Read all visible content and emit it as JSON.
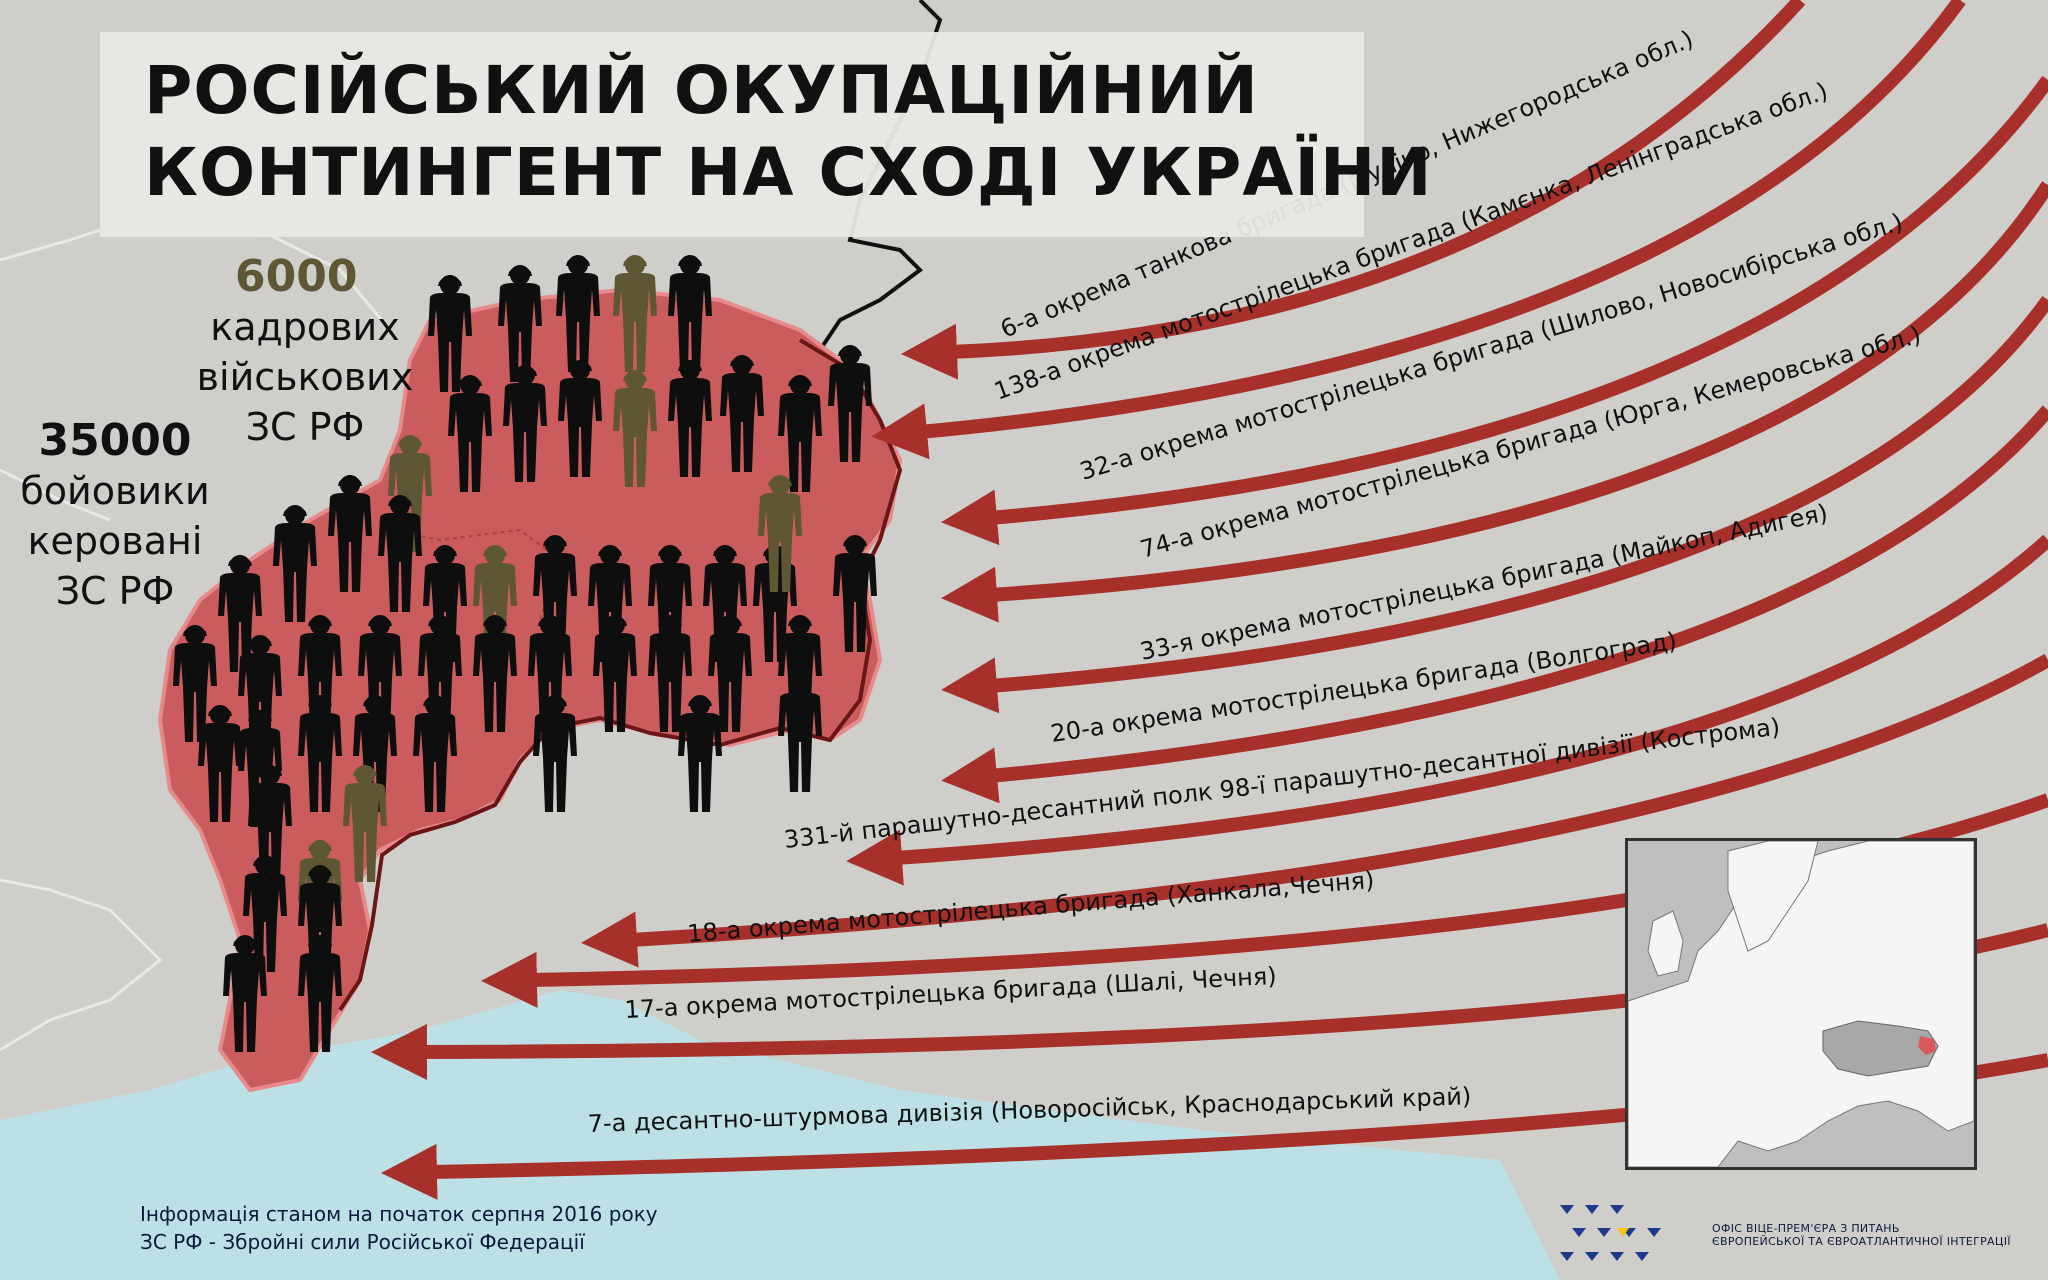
{
  "title": {
    "line1": "РОСІЙСЬКИЙ ОКУПАЦІЙНИЙ",
    "line2": "КОНТИНГЕНТ НА СХОДІ УКРАЇНИ"
  },
  "stats": {
    "regular": {
      "number": "6000",
      "line1": "кадрових",
      "line2": "військових",
      "line3": "ЗС РФ"
    },
    "militants": {
      "number": "35000",
      "line1": "бойовики",
      "line2": "керовані",
      "line3": "ЗС РФ"
    }
  },
  "units": [
    "6-а окрема танкова бригада (Муліно, Нижегородська обл.)",
    "138-а окрема мотострілецька бригада (Камєнка, Ленінградська обл.)",
    "32-а окрема мотострілецька бригада (Шилово, Новосибірська обл.)",
    "74-а окрема мотострілецька бригада (Юрга, Кемеровська обл.)",
    "33-я окрема мотострілецька бригада  (Майкоп, Адигея)",
    "20-а окрема мотострілецька бригада (Волгоград)",
    "331-й парашутно-десантний полк 98-ї парашутно-десантної дивізії  (Кострома)",
    "18-а  окрема мотострілецька бригада (Ханкала,Чечня)",
    "17-а окрема мотострілецька бригада (Шалі, Чечня)",
    "7-а десантно-штурмова дивізія (Новоросійськ, Краснодарський край)"
  ],
  "soldiers": {
    "black_count": 46,
    "olive_count": 7
  },
  "footer": {
    "line1": "Інформація станом на початок серпня 2016 року",
    "line2": "ЗС РФ - Збройні сили Російської Федерації"
  },
  "office": {
    "line1": "ОФІС ВІЦЕ-ПРЕМ'ЄРА З ПИТАНЬ",
    "line2": "ЄВРОПЕЙСЬКОЇ ТА ЄВРОАТЛАНТИЧНОЇ ІНТЕГРАЦІЇ"
  },
  "colors": {
    "background": "#cfcecb",
    "occupied_region": "#cb5c5e",
    "arrow": "#a8302a",
    "sea": "#bde0e6",
    "soldier_black": "#0e0e0e",
    "soldier_olive": "#5e5634"
  }
}
